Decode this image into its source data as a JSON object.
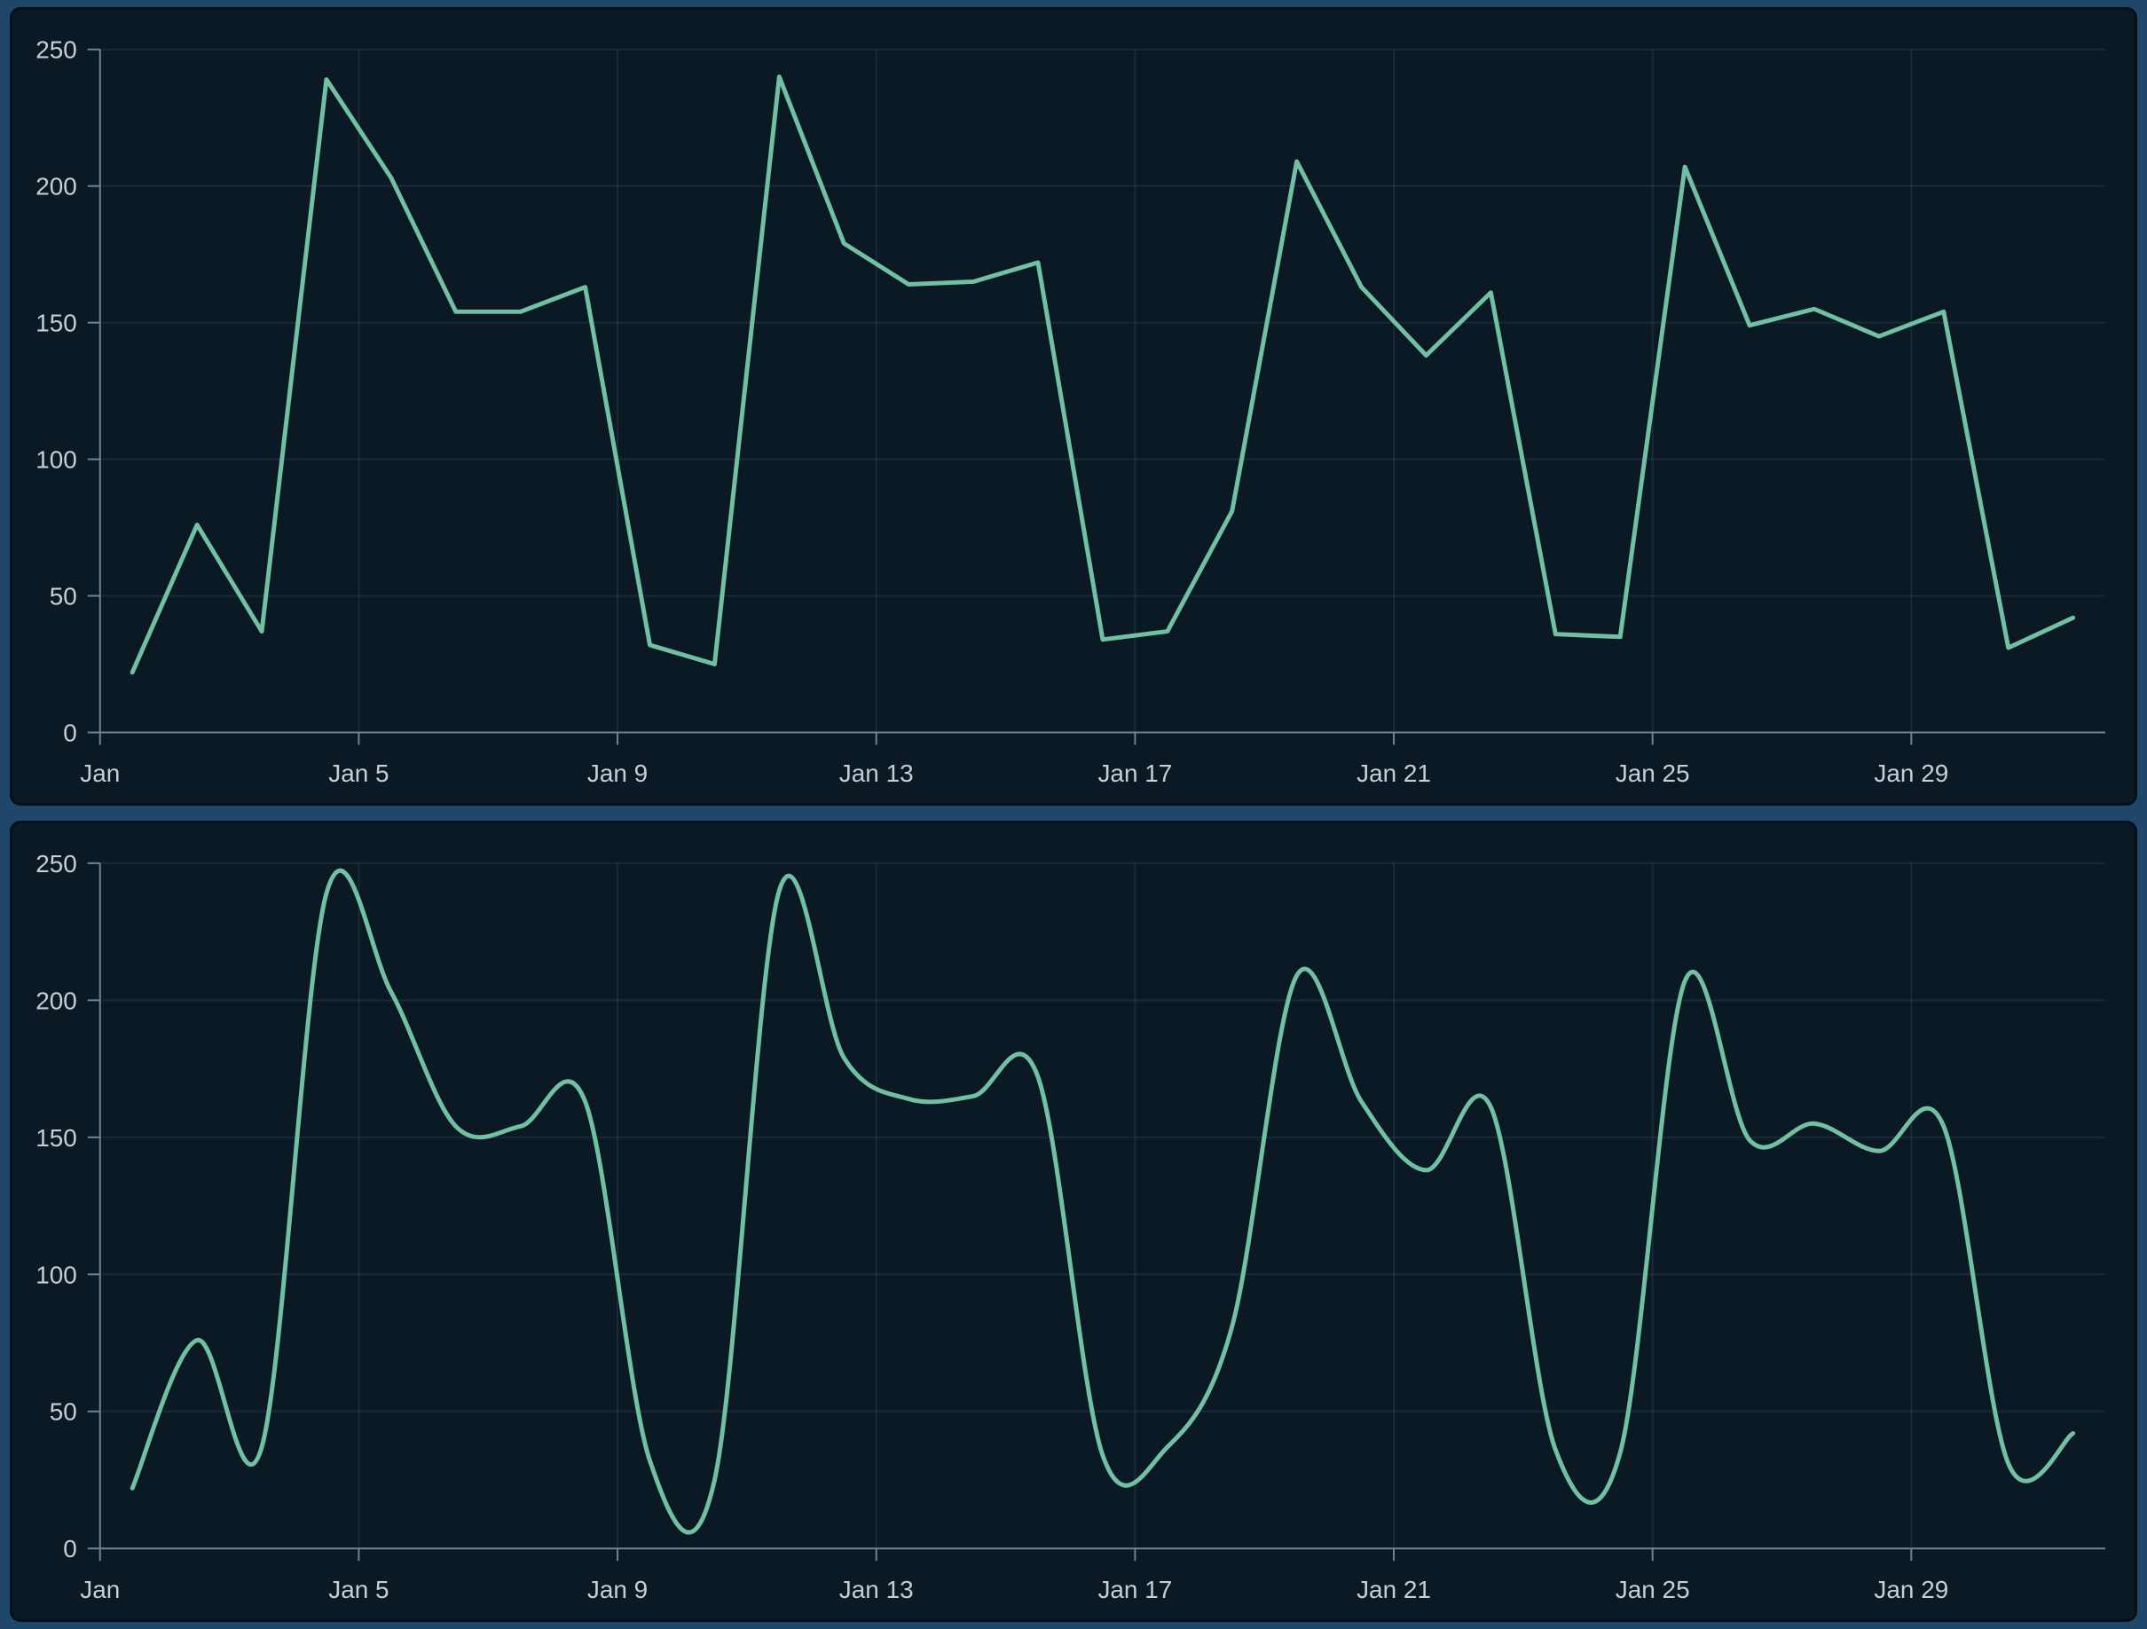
{
  "page": {
    "background_color": "#1f4769"
  },
  "panel": {
    "background_color": "#0a1924",
    "border_color": "#05101a"
  },
  "style": {
    "axis_color": "#75838f",
    "tick_label_color": "#c7ced5",
    "grid_color": "rgba(140,170,195,0.12)",
    "line_color": "#72c0a4",
    "tick_font_size": 28
  },
  "chart_data": [
    {
      "id": "chart-top",
      "type": "line",
      "interpolation": "linear",
      "title": "",
      "xlabel": "",
      "ylabel": "",
      "x_dates": [
        "Jan 1",
        "Jan 2",
        "Jan 3",
        "Jan 4",
        "Jan 5",
        "Jan 6",
        "Jan 7",
        "Jan 8",
        "Jan 9",
        "Jan 10",
        "Jan 11",
        "Jan 12",
        "Jan 13",
        "Jan 14",
        "Jan 15",
        "Jan 16",
        "Jan 17",
        "Jan 18",
        "Jan 19",
        "Jan 20",
        "Jan 21",
        "Jan 22",
        "Jan 23",
        "Jan 24",
        "Jan 25",
        "Jan 26",
        "Jan 27",
        "Jan 28",
        "Jan 29",
        "Jan 30",
        "Jan 31"
      ],
      "values": [
        22,
        76,
        37,
        239,
        203,
        154,
        154,
        163,
        32,
        25,
        240,
        179,
        164,
        165,
        172,
        34,
        37,
        81,
        209,
        163,
        138,
        161,
        36,
        35,
        207,
        149,
        155,
        145,
        154,
        31,
        42
      ],
      "x_tick_labels": [
        "Jan",
        "Jan 5",
        "Jan 9",
        "Jan 13",
        "Jan 17",
        "Jan 21",
        "Jan 25",
        "Jan 29"
      ],
      "x_tick_days": [
        0,
        4,
        8,
        12,
        16,
        20,
        24,
        28
      ],
      "y_ticks": [
        0,
        50,
        100,
        150,
        200,
        250
      ],
      "ylim": [
        0,
        250
      ],
      "grid": "on",
      "legend": "none"
    },
    {
      "id": "chart-bottom",
      "type": "line",
      "interpolation": "smooth",
      "title": "",
      "xlabel": "",
      "ylabel": "",
      "x_dates": [
        "Jan 1",
        "Jan 2",
        "Jan 3",
        "Jan 4",
        "Jan 5",
        "Jan 6",
        "Jan 7",
        "Jan 8",
        "Jan 9",
        "Jan 10",
        "Jan 11",
        "Jan 12",
        "Jan 13",
        "Jan 14",
        "Jan 15",
        "Jan 16",
        "Jan 17",
        "Jan 18",
        "Jan 19",
        "Jan 20",
        "Jan 21",
        "Jan 22",
        "Jan 23",
        "Jan 24",
        "Jan 25",
        "Jan 26",
        "Jan 27",
        "Jan 28",
        "Jan 29",
        "Jan 30",
        "Jan 31"
      ],
      "values": [
        22,
        76,
        37,
        239,
        203,
        154,
        154,
        163,
        32,
        25,
        240,
        179,
        164,
        165,
        172,
        34,
        37,
        81,
        209,
        163,
        138,
        161,
        36,
        35,
        207,
        149,
        155,
        145,
        154,
        31,
        42
      ],
      "x_tick_labels": [
        "Jan",
        "Jan 5",
        "Jan 9",
        "Jan 13",
        "Jan 17",
        "Jan 21",
        "Jan 25",
        "Jan 29"
      ],
      "x_tick_days": [
        0,
        4,
        8,
        12,
        16,
        20,
        24,
        28
      ],
      "y_ticks": [
        0,
        50,
        100,
        150,
        200,
        250
      ],
      "ylim": [
        0,
        250
      ],
      "grid": "on",
      "legend": "none"
    }
  ]
}
